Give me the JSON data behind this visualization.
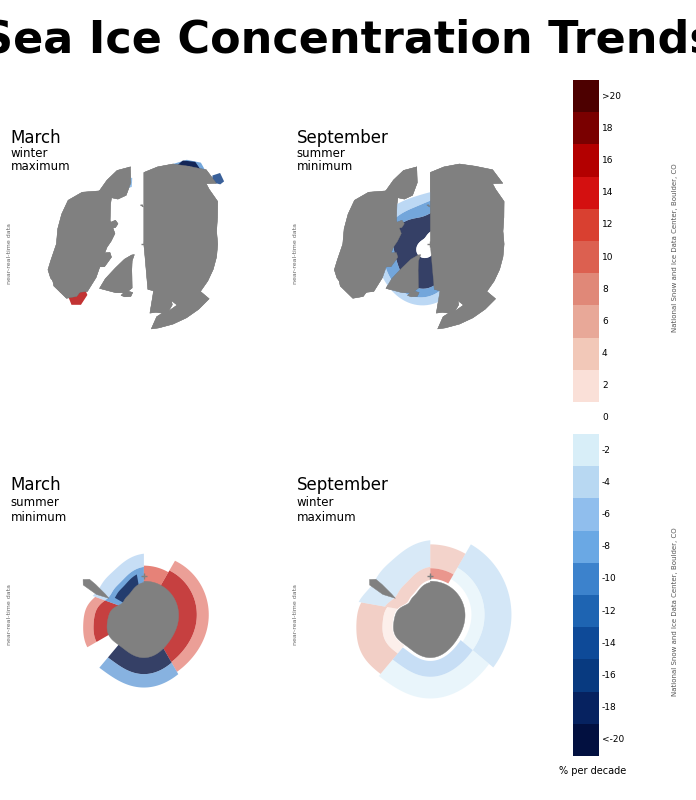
{
  "title": "Sea Ice Concentration Trends",
  "title_fontsize": 32,
  "background_color": "#808080",
  "panel_bg": "#808080",
  "figure_bg": "#ffffff",
  "ocean_color": "#ffffff",
  "land_color": "#808080",
  "panels": [
    {
      "row": 0,
      "col": 0,
      "label_main": "March",
      "label_sub1": "winter",
      "label_sub2": "maximum"
    },
    {
      "row": 0,
      "col": 1,
      "label_main": "September",
      "label_sub1": "summer",
      "label_sub2": "minimum"
    },
    {
      "row": 1,
      "col": 0,
      "label_main": "March",
      "label_sub1": "summer",
      "label_sub2": "minimum"
    },
    {
      "row": 1,
      "col": 1,
      "label_main": "September",
      "label_sub1": "winter",
      "label_sub2": "maximum"
    }
  ],
  "colorbar_labels": [
    ">20",
    "18",
    "16",
    "14",
    "12",
    "10",
    "8",
    "6",
    "4",
    "2",
    "0",
    "-2",
    "-4",
    "-6",
    "-8",
    "-10",
    "-12",
    "-14",
    "-16",
    "-18",
    "<-20"
  ],
  "colorbar_colors": [
    "#4d0000",
    "#7a0000",
    "#b30000",
    "#d41010",
    "#d94030",
    "#dc6050",
    "#e08878",
    "#e8a898",
    "#f2c8b8",
    "#fae0d8",
    "#ffffff",
    "#d8eef8",
    "#b8d8f2",
    "#90beed",
    "#6aa8e4",
    "#3c82cc",
    "#1e64b2",
    "#0e4a98",
    "#083a80",
    "#062260",
    "#021040"
  ],
  "colorbar_unit": "% per decade",
  "source_text": "National Snow and Ice Data Center, Boulder, CO",
  "watermark_text": "near-real-time data"
}
